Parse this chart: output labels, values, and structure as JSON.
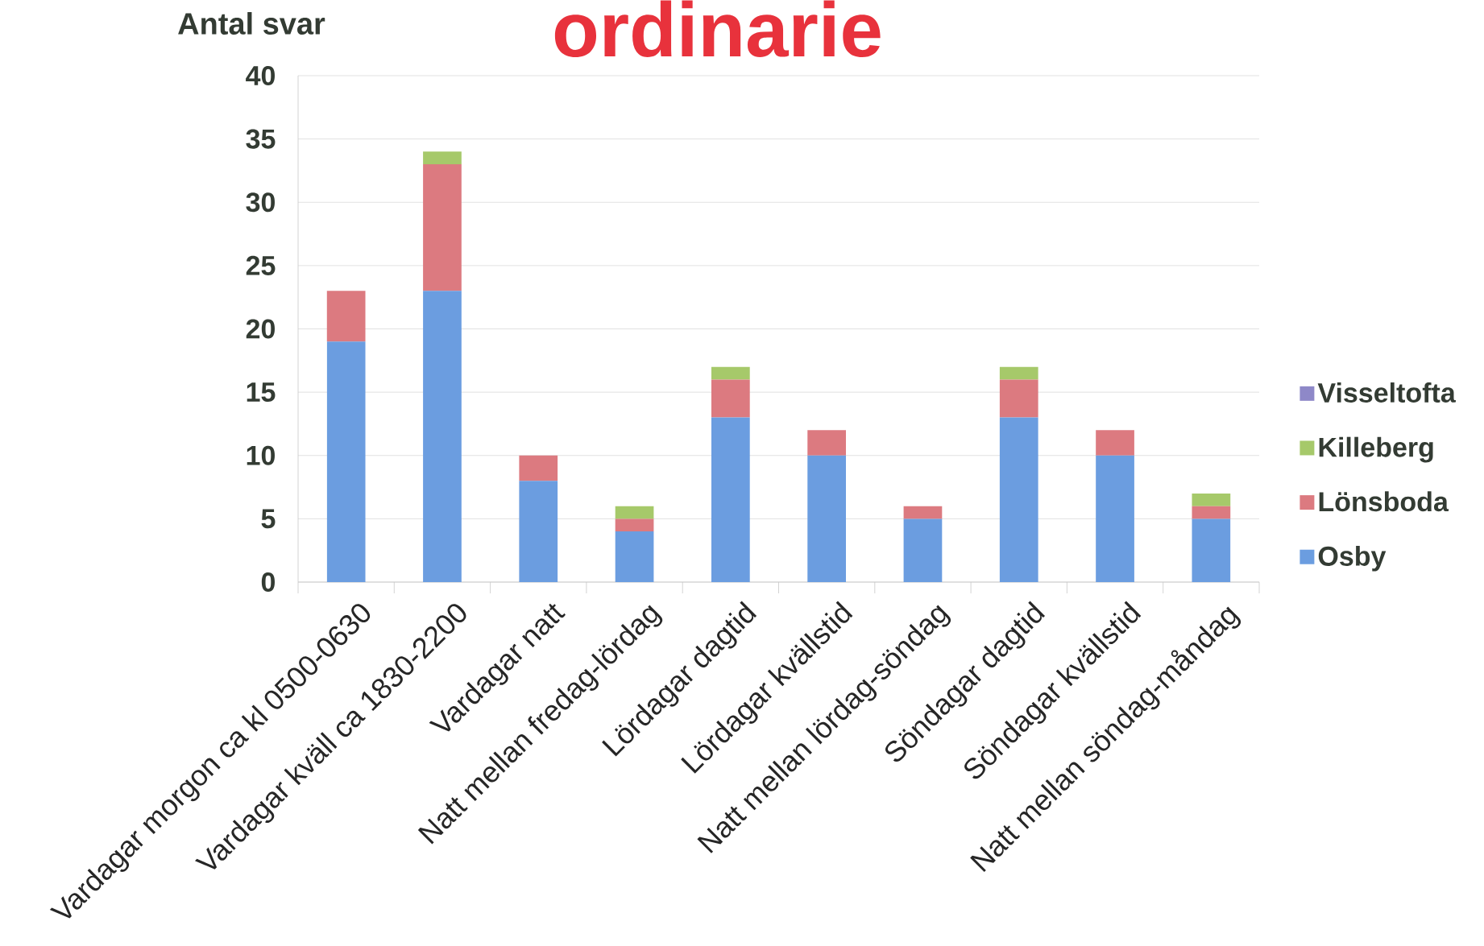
{
  "chart_data": {
    "type": "bar",
    "stacked": true,
    "title": "ordinarie",
    "ylabel": "Antal svar",
    "categories": [
      "Vardagar morgon ca kl 0500-0630",
      "Vardagar kväll ca 1830-2200",
      "Vardagar natt",
      "Natt mellan fredag-lördag",
      "Lördagar dagtid",
      "Lördagar kvällstid",
      "Natt mellan lördag-söndag",
      "Söndagar dagtid",
      "Söndagar kvällstid",
      "Natt mellan söndag-måndag"
    ],
    "series": [
      {
        "name": "Osby",
        "color": "#6b9de0",
        "values": [
          19,
          23,
          8,
          4,
          13,
          10,
          5,
          13,
          10,
          5
        ]
      },
      {
        "name": "Lönsboda",
        "color": "#dc7a80",
        "values": [
          4,
          10,
          2,
          1,
          3,
          2,
          1,
          3,
          2,
          1
        ]
      },
      {
        "name": "Killeberg",
        "color": "#a6c96a",
        "values": [
          0,
          1,
          0,
          1,
          1,
          0,
          0,
          1,
          0,
          1
        ]
      },
      {
        "name": "Visseltofta",
        "color": "#8e88c8",
        "values": [
          0,
          0,
          0,
          0,
          0,
          0,
          0,
          0,
          0,
          0
        ]
      }
    ],
    "ylim": [
      0,
      40
    ],
    "yticks": [
      0,
      5,
      10,
      15,
      20,
      25,
      30,
      35,
      40
    ],
    "grid": "y",
    "legend": "right"
  }
}
